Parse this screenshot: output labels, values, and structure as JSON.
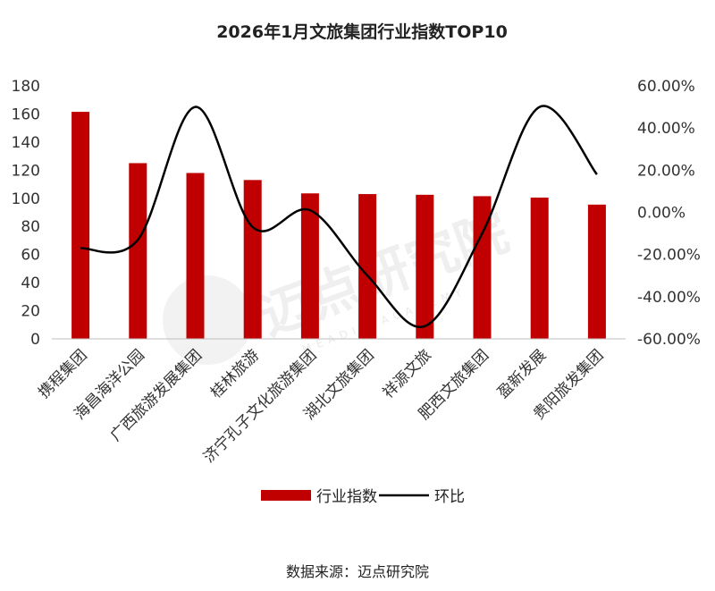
{
  "chart_data": {
    "type": "bar",
    "title": "2026年1月文旅集团行业指数TOP10",
    "categories": [
      "携程集团",
      "海昌海洋公园",
      "广西旅游发展集团",
      "桂林旅游",
      "济宁孔子文化旅游集团",
      "湖北文旅集团",
      "祥源文旅",
      "肥西文旅集团",
      "盈新发展",
      "贵阳旅发集团"
    ],
    "series": [
      {
        "name": "行业指数",
        "type": "bar",
        "axis": "left",
        "color": "#c00000",
        "values": [
          161.5,
          125,
          118,
          113,
          103.5,
          103,
          102.5,
          101.5,
          100.5,
          95.5
        ]
      },
      {
        "name": "环比",
        "type": "line",
        "axis": "right",
        "color": "#000000",
        "values": [
          -17,
          -13,
          50,
          -7,
          1,
          -30,
          -54,
          -10,
          50,
          18
        ]
      }
    ],
    "y_left": {
      "min": 0,
      "max": 180,
      "step": 20,
      "ticks": [
        "0",
        "20",
        "40",
        "60",
        "80",
        "100",
        "120",
        "140",
        "160",
        "180"
      ]
    },
    "y_right": {
      "min": -60,
      "max": 60,
      "step": 20,
      "ticks": [
        "-60.00%",
        "-40.00%",
        "-20.00%",
        "0.00%",
        "20.00%",
        "40.00%",
        "60.00%"
      ]
    },
    "legend": {
      "position": "bottom",
      "items": [
        "行业指数",
        "环比"
      ]
    },
    "grid": false
  },
  "source_text": "数据来源：迈点研究院",
  "watermark": {
    "text": "迈点研究院",
    "subtext": "MEADIN ACADEMY"
  }
}
